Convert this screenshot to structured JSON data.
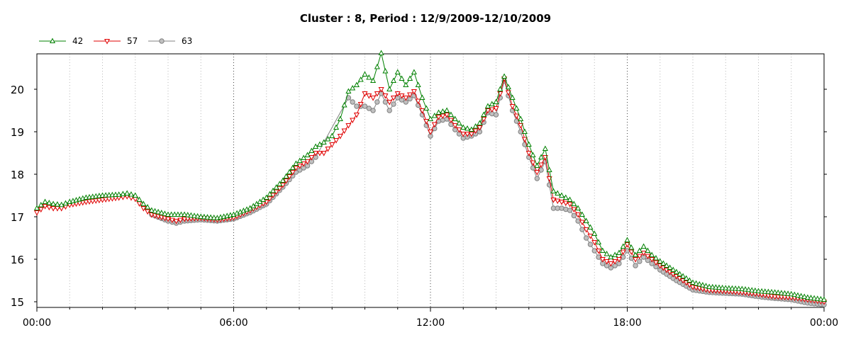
{
  "chart_data": {
    "type": "line",
    "title": "Cluster : 8, Period : 12/9/2009-12/10/2009",
    "xlabel": "",
    "ylabel": "",
    "x_ticks": [
      "00:00",
      "06:00",
      "12:00",
      "18:00",
      "00:00"
    ],
    "y_ticks": [
      "15",
      "16",
      "17",
      "18",
      "19",
      "20"
    ],
    "xlim_hours": [
      0,
      24
    ],
    "ylim": [
      14.9,
      20.85
    ],
    "grid": "dotted-vertical",
    "legend_position": "top-left",
    "series": [
      {
        "name": "42",
        "color": "#008000",
        "marker": "triangle-up",
        "points": [
          [
            0,
            17.2
          ],
          [
            0.25,
            17.35
          ],
          [
            0.5,
            17.3
          ],
          [
            0.75,
            17.28
          ],
          [
            1,
            17.35
          ],
          [
            1.5,
            17.45
          ],
          [
            2,
            17.5
          ],
          [
            2.5,
            17.52
          ],
          [
            2.75,
            17.55
          ],
          [
            3,
            17.5
          ],
          [
            3.25,
            17.3
          ],
          [
            3.5,
            17.15
          ],
          [
            4,
            17.05
          ],
          [
            4.5,
            17.05
          ],
          [
            5,
            17.0
          ],
          [
            5.5,
            16.97
          ],
          [
            6,
            17.05
          ],
          [
            6.5,
            17.2
          ],
          [
            7,
            17.45
          ],
          [
            7.5,
            17.85
          ],
          [
            7.9,
            18.25
          ],
          [
            8.25,
            18.45
          ],
          [
            8.5,
            18.65
          ],
          [
            8.75,
            18.75
          ],
          [
            9,
            18.9
          ],
          [
            9.25,
            19.3
          ],
          [
            9.5,
            19.95
          ],
          [
            9.75,
            20.1
          ],
          [
            10,
            20.35
          ],
          [
            10.25,
            20.2
          ],
          [
            10.5,
            20.85
          ],
          [
            10.75,
            20.0
          ],
          [
            11,
            20.4
          ],
          [
            11.25,
            20.1
          ],
          [
            11.5,
            20.4
          ],
          [
            11.75,
            19.8
          ],
          [
            12,
            19.3
          ],
          [
            12.25,
            19.45
          ],
          [
            12.5,
            19.5
          ],
          [
            12.75,
            19.3
          ],
          [
            13,
            19.1
          ],
          [
            13.25,
            19.05
          ],
          [
            13.5,
            19.2
          ],
          [
            13.75,
            19.6
          ],
          [
            14,
            19.7
          ],
          [
            14.25,
            20.3
          ],
          [
            14.5,
            19.8
          ],
          [
            14.75,
            19.3
          ],
          [
            15,
            18.7
          ],
          [
            15.25,
            18.2
          ],
          [
            15.5,
            18.6
          ],
          [
            15.75,
            17.6
          ],
          [
            16,
            17.5
          ],
          [
            16.25,
            17.4
          ],
          [
            16.5,
            17.2
          ],
          [
            16.75,
            16.9
          ],
          [
            17,
            16.6
          ],
          [
            17.25,
            16.2
          ],
          [
            17.5,
            16.05
          ],
          [
            17.75,
            16.15
          ],
          [
            18,
            16.45
          ],
          [
            18.25,
            16.1
          ],
          [
            18.5,
            16.3
          ],
          [
            18.75,
            16.1
          ],
          [
            19,
            15.95
          ],
          [
            19.5,
            15.7
          ],
          [
            20,
            15.45
          ],
          [
            20.5,
            15.35
          ],
          [
            21,
            15.32
          ],
          [
            21.5,
            15.3
          ],
          [
            22,
            15.25
          ],
          [
            22.5,
            15.22
          ],
          [
            23,
            15.18
          ],
          [
            23.5,
            15.1
          ],
          [
            24,
            15.05
          ]
        ]
      },
      {
        "name": "57",
        "color": "#e00000",
        "marker": "triangle-down",
        "points": [
          [
            0,
            17.1
          ],
          [
            0.25,
            17.25
          ],
          [
            0.5,
            17.2
          ],
          [
            0.75,
            17.2
          ],
          [
            1,
            17.28
          ],
          [
            1.5,
            17.35
          ],
          [
            2,
            17.4
          ],
          [
            2.5,
            17.45
          ],
          [
            2.75,
            17.48
          ],
          [
            3,
            17.42
          ],
          [
            3.25,
            17.2
          ],
          [
            3.5,
            17.05
          ],
          [
            4,
            16.95
          ],
          [
            4.25,
            16.9
          ],
          [
            4.5,
            16.95
          ],
          [
            5,
            16.97
          ],
          [
            5.5,
            16.93
          ],
          [
            6,
            16.98
          ],
          [
            6.5,
            17.15
          ],
          [
            7,
            17.35
          ],
          [
            7.5,
            17.75
          ],
          [
            7.9,
            18.15
          ],
          [
            8.25,
            18.3
          ],
          [
            8.5,
            18.5
          ],
          [
            8.75,
            18.5
          ],
          [
            9,
            18.7
          ],
          [
            9.25,
            18.9
          ],
          [
            9.5,
            19.15
          ],
          [
            9.75,
            19.4
          ],
          [
            10,
            19.9
          ],
          [
            10.25,
            19.8
          ],
          [
            10.5,
            20.0
          ],
          [
            10.75,
            19.7
          ],
          [
            11,
            19.9
          ],
          [
            11.25,
            19.8
          ],
          [
            11.5,
            19.95
          ],
          [
            11.75,
            19.5
          ],
          [
            12,
            19.0
          ],
          [
            12.25,
            19.35
          ],
          [
            12.5,
            19.4
          ],
          [
            12.75,
            19.15
          ],
          [
            13,
            18.95
          ],
          [
            13.25,
            18.95
          ],
          [
            13.5,
            19.1
          ],
          [
            13.75,
            19.5
          ],
          [
            14,
            19.55
          ],
          [
            14.25,
            20.25
          ],
          [
            14.5,
            19.6
          ],
          [
            14.75,
            19.15
          ],
          [
            15,
            18.5
          ],
          [
            15.25,
            18.05
          ],
          [
            15.5,
            18.4
          ],
          [
            15.75,
            17.4
          ],
          [
            16,
            17.35
          ],
          [
            16.25,
            17.3
          ],
          [
            16.5,
            17.05
          ],
          [
            16.75,
            16.7
          ],
          [
            17,
            16.4
          ],
          [
            17.25,
            16.0
          ],
          [
            17.5,
            15.9
          ],
          [
            17.75,
            16.0
          ],
          [
            18,
            16.35
          ],
          [
            18.25,
            16.0
          ],
          [
            18.5,
            16.15
          ],
          [
            18.75,
            16.0
          ],
          [
            19,
            15.85
          ],
          [
            19.5,
            15.6
          ],
          [
            20,
            15.35
          ],
          [
            20.5,
            15.27
          ],
          [
            21,
            15.25
          ],
          [
            21.5,
            15.22
          ],
          [
            22,
            15.18
          ],
          [
            22.5,
            15.12
          ],
          [
            23,
            15.1
          ],
          [
            23.5,
            15.05
          ],
          [
            24,
            15.0
          ]
        ]
      },
      {
        "name": "63",
        "color": "#808080",
        "marker": "circle",
        "points": [
          [
            3.5,
            17.05
          ],
          [
            4,
            16.9
          ],
          [
            4.25,
            16.85
          ],
          [
            4.5,
            16.9
          ],
          [
            5,
            16.93
          ],
          [
            5.5,
            16.9
          ],
          [
            6,
            16.95
          ],
          [
            6.5,
            17.1
          ],
          [
            7,
            17.3
          ],
          [
            7.5,
            17.7
          ],
          [
            7.9,
            18.05
          ],
          [
            8.25,
            18.2
          ],
          [
            8.5,
            18.4
          ],
          [
            9.5,
            19.8
          ],
          [
            9.75,
            19.6
          ],
          [
            10,
            19.6
          ],
          [
            10.25,
            19.5
          ],
          [
            10.5,
            19.9
          ],
          [
            10.75,
            19.5
          ],
          [
            11,
            19.8
          ],
          [
            11.25,
            19.7
          ],
          [
            11.5,
            19.85
          ],
          [
            11.75,
            19.4
          ],
          [
            12,
            18.9
          ],
          [
            12.25,
            19.25
          ],
          [
            12.5,
            19.3
          ],
          [
            12.75,
            19.05
          ],
          [
            13,
            18.85
          ],
          [
            13.25,
            18.9
          ],
          [
            13.5,
            19.0
          ],
          [
            13.75,
            19.45
          ],
          [
            14,
            19.4
          ],
          [
            14.25,
            20.2
          ],
          [
            14.5,
            19.5
          ],
          [
            14.75,
            19.0
          ],
          [
            15,
            18.4
          ],
          [
            15.25,
            17.9
          ],
          [
            15.5,
            18.3
          ],
          [
            15.75,
            17.2
          ],
          [
            16,
            17.2
          ],
          [
            16.25,
            17.15
          ],
          [
            16.5,
            16.9
          ],
          [
            16.75,
            16.5
          ],
          [
            17,
            16.2
          ],
          [
            17.25,
            15.9
          ],
          [
            17.5,
            15.8
          ],
          [
            17.75,
            15.9
          ],
          [
            18,
            16.2
          ],
          [
            18.25,
            15.85
          ],
          [
            18.5,
            16.05
          ],
          [
            18.75,
            15.9
          ],
          [
            19,
            15.75
          ],
          [
            19.5,
            15.5
          ],
          [
            20,
            15.28
          ],
          [
            20.5,
            15.22
          ],
          [
            21,
            15.2
          ],
          [
            21.5,
            15.18
          ],
          [
            22,
            15.12
          ],
          [
            22.5,
            15.08
          ],
          [
            23,
            15.05
          ],
          [
            23.5,
            14.97
          ],
          [
            24,
            14.93
          ]
        ]
      }
    ]
  }
}
